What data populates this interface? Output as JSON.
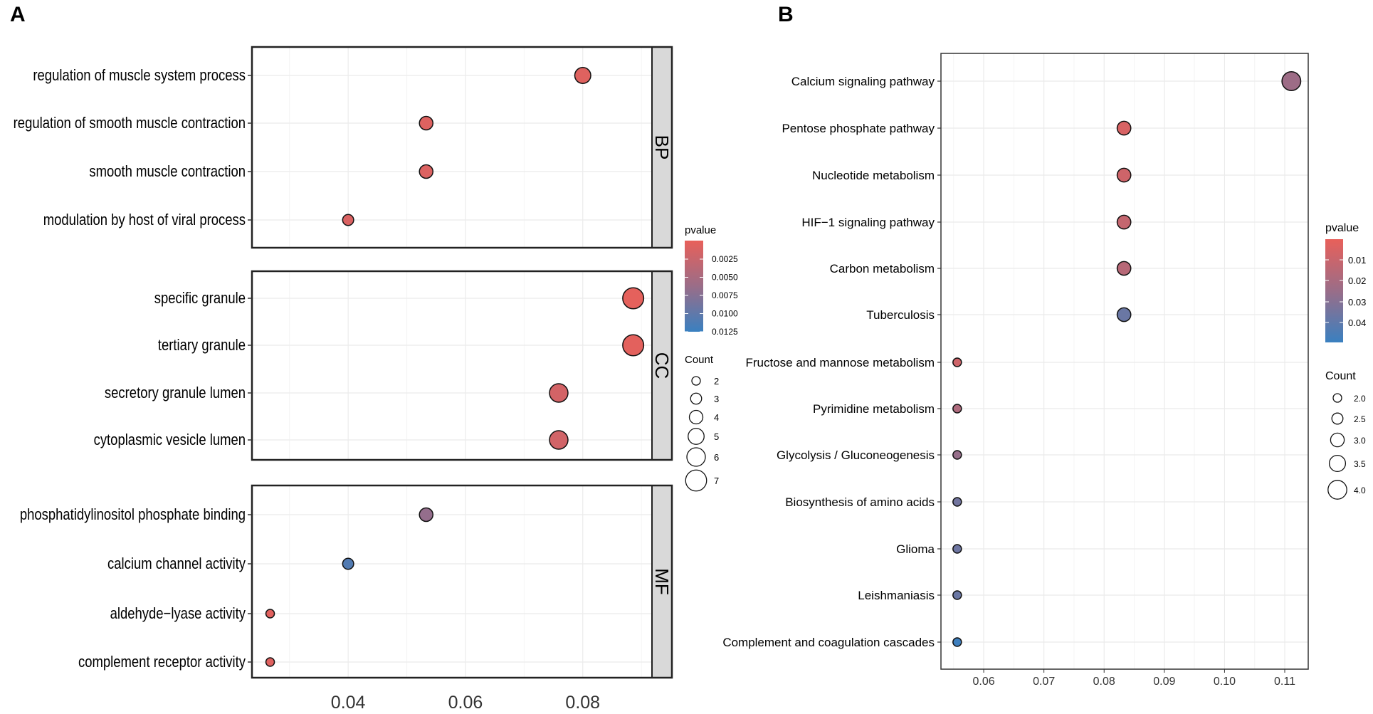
{
  "panel_labels": [
    "A",
    "B"
  ],
  "chart_data": [
    {
      "type": "scatter",
      "subtype": "dot-plot",
      "panel": "A",
      "xlabel": "",
      "xlim": [
        0.0236,
        0.0918
      ],
      "xticks": [
        0.04,
        0.06,
        0.08
      ],
      "xtick_labels": [
        "0.04",
        "0.06",
        "0.08"
      ],
      "grid": true,
      "facets": [
        {
          "name": "BP",
          "rows": [
            {
              "term": "regulation of muscle system process",
              "x": 0.08,
              "count": 5,
              "pvalue": 0.0008
            },
            {
              "term": "regulation of smooth muscle contraction",
              "x": 0.0533,
              "count": 4,
              "pvalue": 0.0009
            },
            {
              "term": "smooth muscle contraction",
              "x": 0.0533,
              "count": 4,
              "pvalue": 0.001
            },
            {
              "term": "modulation by host of viral process",
              "x": 0.04,
              "count": 3,
              "pvalue": 0.0012
            }
          ]
        },
        {
          "name": "CC",
          "rows": [
            {
              "term": "specific granule",
              "x": 0.0886,
              "count": 7,
              "pvalue": 0.0003
            },
            {
              "term": "tertiary granule",
              "x": 0.0886,
              "count": 7,
              "pvalue": 0.0004
            },
            {
              "term": "secretory granule lumen",
              "x": 0.0759,
              "count": 6,
              "pvalue": 0.0018
            },
            {
              "term": "cytoplasmic vesicle lumen",
              "x": 0.0759,
              "count": 6,
              "pvalue": 0.002
            }
          ]
        },
        {
          "name": "MF",
          "rows": [
            {
              "term": "phosphatidylinositol phosphate binding",
              "x": 0.0533,
              "count": 4,
              "pvalue": 0.0072
            },
            {
              "term": "calcium channel activity",
              "x": 0.04,
              "count": 3,
              "pvalue": 0.0118
            },
            {
              "term": "aldehyde−lyase activity",
              "x": 0.0267,
              "count": 2,
              "pvalue": 0.0006
            },
            {
              "term": "complement receptor activity",
              "x": 0.0267,
              "count": 2,
              "pvalue": 0.0007
            }
          ]
        }
      ],
      "legend": {
        "placement": "right",
        "color_title": "pvalue",
        "color_range": [
          0,
          0.0135
        ],
        "color_ticks": [
          "0.0025",
          "0.0050",
          "0.0075",
          "0.0100",
          "0.0125"
        ],
        "size_title": "Count",
        "size_ticks": [
          "2",
          "3",
          "4",
          "5",
          "6",
          "7"
        ]
      }
    },
    {
      "type": "scatter",
      "subtype": "dot-plot",
      "panel": "B",
      "xlabel": "",
      "xlim": [
        0.0529,
        0.1139
      ],
      "xticks": [
        0.06,
        0.07,
        0.08,
        0.09,
        0.1,
        0.11
      ],
      "xtick_labels": [
        "0.06",
        "0.07",
        "0.08",
        "0.09",
        "0.10",
        "0.11"
      ],
      "grid": true,
      "rows": [
        {
          "term": "Calcium signaling pathway",
          "x": 0.1111,
          "count": 4,
          "pvalue": 0.025
        },
        {
          "term": "Pentose phosphate pathway",
          "x": 0.0833,
          "count": 3,
          "pvalue": 0.007
        },
        {
          "term": "Nucleotide metabolism",
          "x": 0.0833,
          "count": 3,
          "pvalue": 0.01
        },
        {
          "term": "HIF−1 signaling pathway",
          "x": 0.0833,
          "count": 3,
          "pvalue": 0.013
        },
        {
          "term": "Carbon metabolism",
          "x": 0.0833,
          "count": 3,
          "pvalue": 0.017
        },
        {
          "term": "Tuberculosis",
          "x": 0.0833,
          "count": 3,
          "pvalue": 0.038
        },
        {
          "term": "Fructose and mannose metabolism",
          "x": 0.0556,
          "count": 2,
          "pvalue": 0.01
        },
        {
          "term": "Pyrimidine metabolism",
          "x": 0.0556,
          "count": 2,
          "pvalue": 0.02
        },
        {
          "term": "Glycolysis / Gluconeogenesis",
          "x": 0.0556,
          "count": 2,
          "pvalue": 0.027
        },
        {
          "term": "Biosynthesis of amino acids",
          "x": 0.0556,
          "count": 2,
          "pvalue": 0.036
        },
        {
          "term": "Glioma",
          "x": 0.0556,
          "count": 2,
          "pvalue": 0.037
        },
        {
          "term": "Leishmaniasis",
          "x": 0.0556,
          "count": 2,
          "pvalue": 0.038
        },
        {
          "term": "Complement and coagulation cascades",
          "x": 0.0556,
          "count": 2,
          "pvalue": 0.049
        }
      ],
      "legend": {
        "placement": "right",
        "color_title": "pvalue",
        "color_range": [
          0.002,
          0.05
        ],
        "color_ticks": [
          "0.01",
          "0.02",
          "0.03",
          "0.04"
        ],
        "size_title": "Count",
        "size_ticks": [
          "2.0",
          "2.5",
          "3.0",
          "3.5",
          "4.0"
        ]
      }
    }
  ],
  "colors": {
    "low": "#e8605a",
    "mid": "#9a6d88",
    "high": "#3a80c0",
    "grid": "#ebebeb",
    "strip": "#d9d9d9"
  }
}
